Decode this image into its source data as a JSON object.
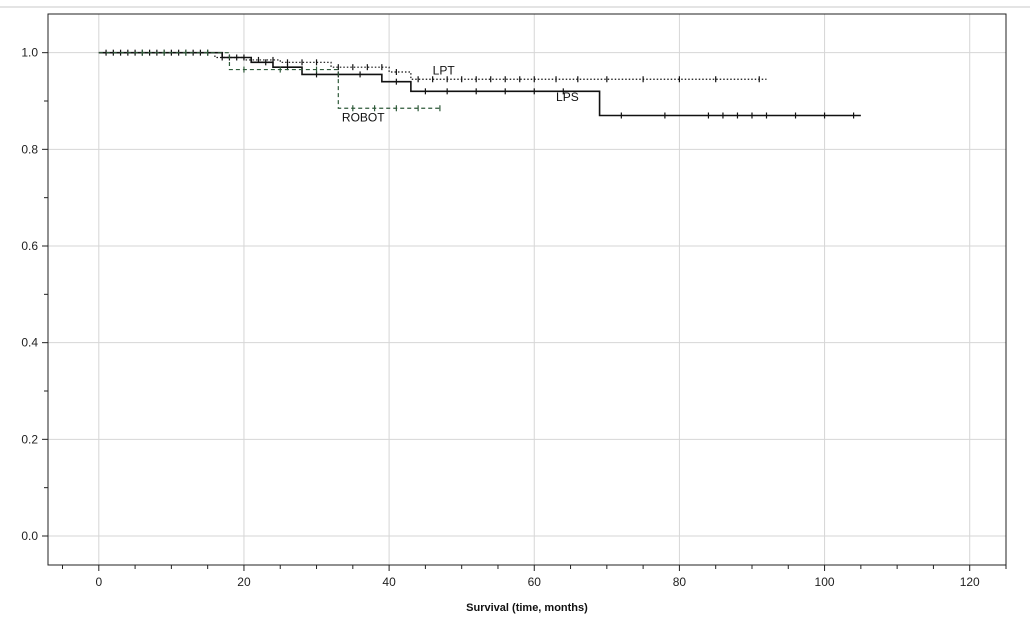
{
  "chart_data": {
    "type": "line",
    "title": "",
    "xlabel": "Survival (time, months)",
    "ylabel": "",
    "xlim": [
      -7,
      125
    ],
    "ylim": [
      -0.06,
      1.08
    ],
    "xticks": [
      0,
      20,
      40,
      60,
      80,
      100,
      120
    ],
    "xtick_labels": [
      "0",
      "20",
      "40",
      "60",
      "80",
      "100",
      "120"
    ],
    "yticks": [
      0.0,
      0.2,
      0.4,
      0.6,
      0.8,
      1.0
    ],
    "ytick_labels": [
      "0.0",
      "0.2",
      "0.4",
      "0.6",
      "0.8",
      "1.0"
    ],
    "grid": true,
    "series": [
      {
        "name": "LPS",
        "style": "solid",
        "color": "#111111",
        "steps": [
          [
            0,
            1.0
          ],
          [
            17,
            0.99
          ],
          [
            21,
            0.98
          ],
          [
            24,
            0.97
          ],
          [
            28,
            0.955
          ],
          [
            39,
            0.94
          ],
          [
            43,
            0.92
          ],
          [
            69,
            0.87
          ],
          [
            105,
            0.87
          ]
        ],
        "censored": [
          1,
          3,
          5,
          7,
          9,
          11,
          13,
          15,
          18,
          20,
          23,
          26,
          30,
          33,
          36,
          41,
          45,
          48,
          52,
          56,
          60,
          64,
          72,
          78,
          84,
          86,
          88,
          90,
          92,
          96,
          100,
          104
        ]
      },
      {
        "name": "LPT",
        "style": "dotted",
        "color": "#111111",
        "steps": [
          [
            0,
            1.0
          ],
          [
            16,
            0.99
          ],
          [
            20,
            0.985
          ],
          [
            25,
            0.98
          ],
          [
            32,
            0.97
          ],
          [
            40,
            0.96
          ],
          [
            43,
            0.945
          ],
          [
            92,
            0.945
          ]
        ],
        "censored": [
          2,
          4,
          6,
          8,
          10,
          12,
          14,
          17,
          19,
          22,
          24,
          26,
          28,
          30,
          33,
          35,
          37,
          39,
          41,
          44,
          46,
          48,
          50,
          52,
          54,
          56,
          58,
          60,
          63,
          66,
          70,
          75,
          80,
          85,
          91
        ]
      },
      {
        "name": "ROBOT",
        "style": "dashed",
        "color": "#2f5a3a",
        "steps": [
          [
            0,
            1.0
          ],
          [
            18,
            0.965
          ],
          [
            33,
            0.885
          ],
          [
            47,
            0.885
          ]
        ],
        "censored": [
          6,
          9,
          12,
          15,
          20,
          25,
          30,
          35,
          38,
          41,
          44,
          47
        ]
      }
    ],
    "annotations": [
      {
        "text": "LPT",
        "x": 46,
        "y": 0.955
      },
      {
        "text": "LPS",
        "x": 63,
        "y": 0.9
      },
      {
        "text": "ROBOT",
        "x": 33.5,
        "y": 0.858
      }
    ]
  }
}
